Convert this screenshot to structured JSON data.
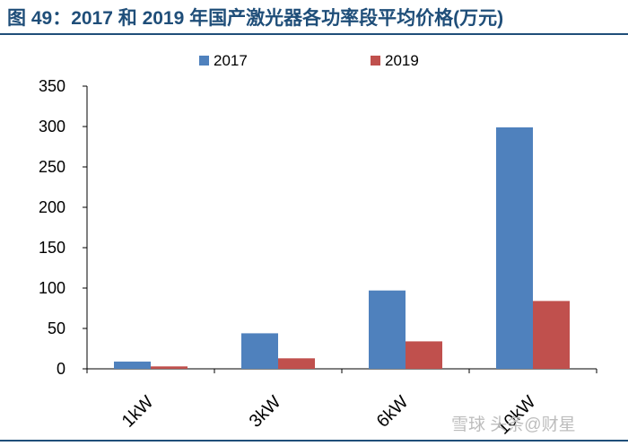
{
  "title": "图 49：2017 和 2019 年国产激光器各功率段平均价格(万元)",
  "watermark": "雪球 头条@财星",
  "colors": {
    "series_2017": "#4f81bd",
    "series_2019": "#c0504d",
    "title": "#1f4e79"
  },
  "chart_data": {
    "type": "bar",
    "title": "图 49：2017 和 2019 年国产激光器各功率段平均价格(万元)",
    "categories": [
      "1kW",
      "3kW",
      "6kW",
      "10kW"
    ],
    "series": [
      {
        "name": "2017",
        "values": [
          9,
          44,
          97,
          299
        ]
      },
      {
        "name": "2019",
        "values": [
          3,
          13,
          34,
          84
        ]
      }
    ],
    "yticks": [
      0,
      50,
      100,
      150,
      200,
      250,
      300,
      350
    ],
    "ylim": [
      0,
      350
    ],
    "grid": false,
    "legend": "top-center"
  }
}
